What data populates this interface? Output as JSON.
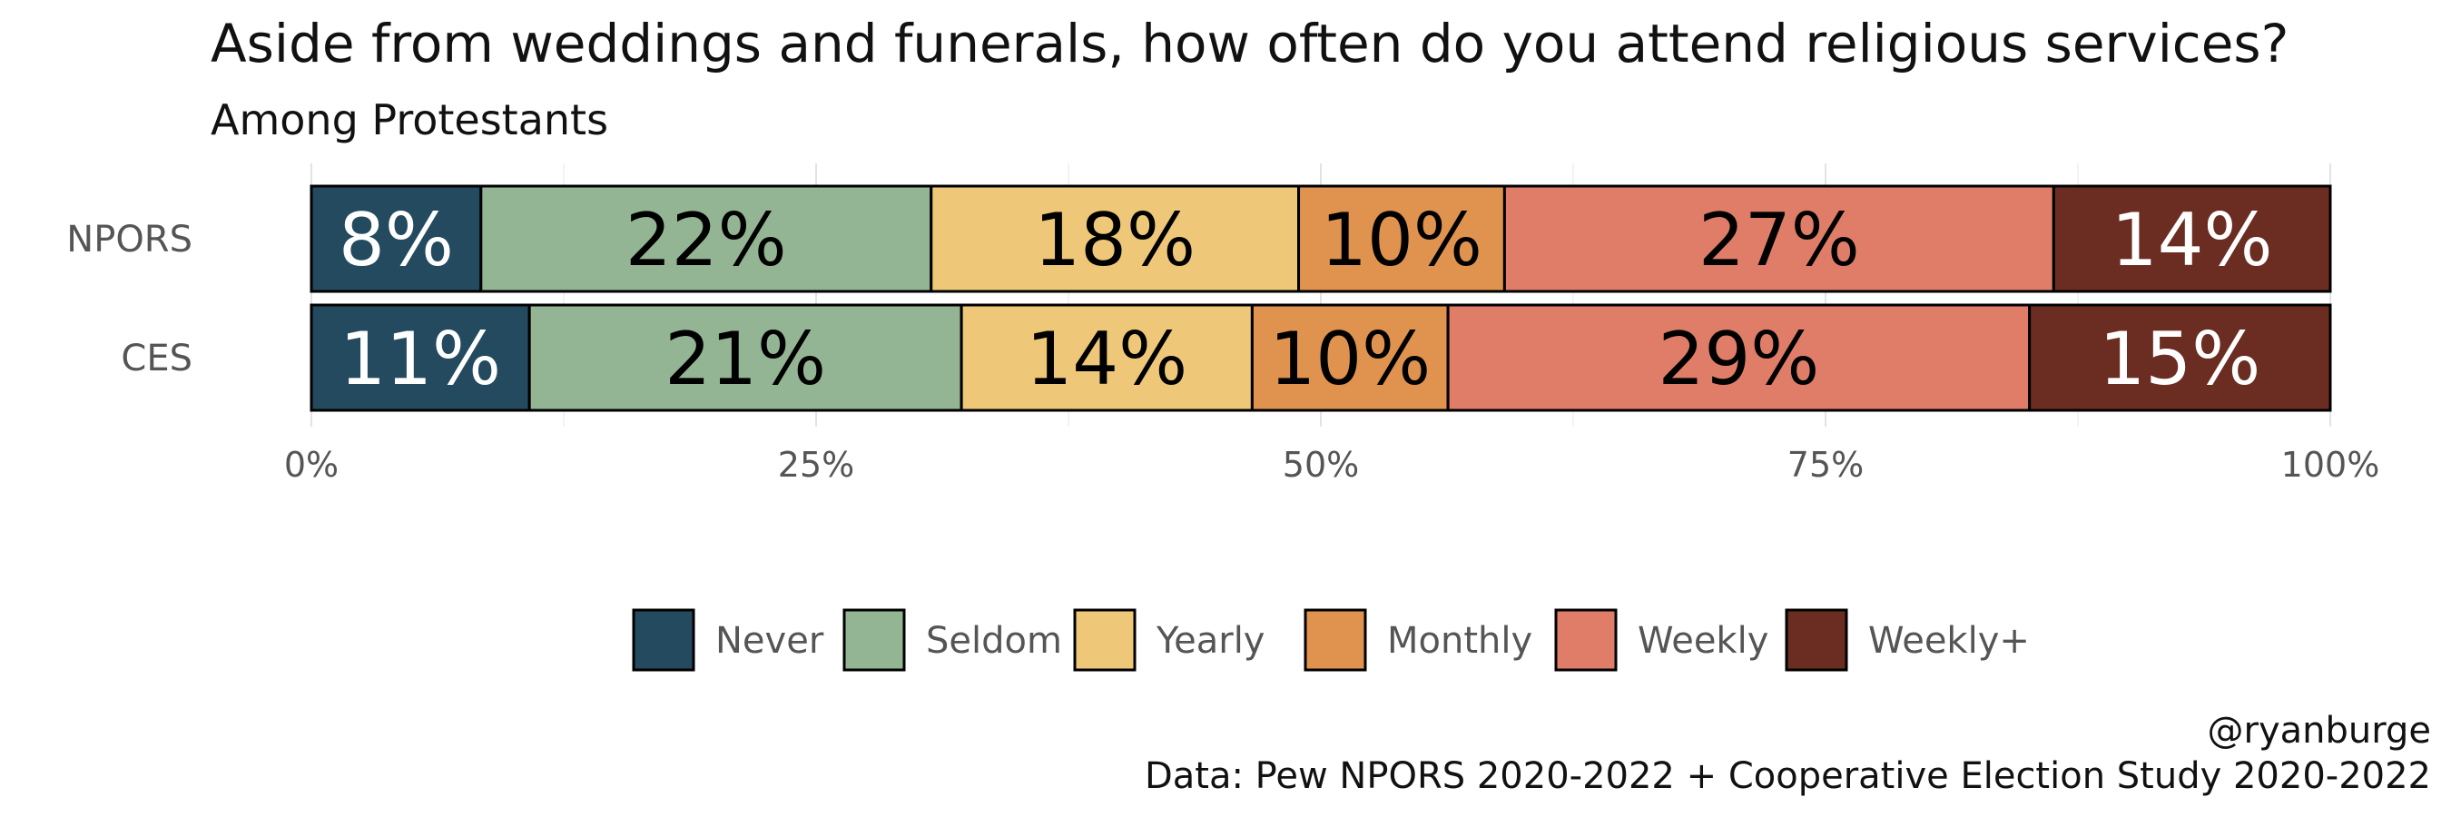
{
  "chart_data": {
    "type": "bar",
    "orientation": "horizontal",
    "stacked": true,
    "title": "Aside from weddings and funerals, how often do you attend religious services?",
    "subtitle": "Among Protestants",
    "categories": [
      "NPORS",
      "CES"
    ],
    "series": [
      {
        "name": "Never",
        "color": "#234a5e",
        "label_color": "#ffffff",
        "values": [
          8.4,
          10.8
        ],
        "labels": [
          "8%",
          "11%"
        ]
      },
      {
        "name": "Seldom",
        "color": "#94b593",
        "label_color": "#000000",
        "values": [
          22.3,
          21.4
        ],
        "labels": [
          "22%",
          "21%"
        ]
      },
      {
        "name": "Yearly",
        "color": "#eec878",
        "label_color": "#000000",
        "values": [
          18.2,
          14.4
        ],
        "labels": [
          "18%",
          "14%"
        ]
      },
      {
        "name": "Monthly",
        "color": "#e0924f",
        "label_color": "#000000",
        "values": [
          10.2,
          9.7
        ],
        "labels": [
          "10%",
          "10%"
        ]
      },
      {
        "name": "Weekly",
        "color": "#e07d68",
        "label_color": "#000000",
        "values": [
          27.2,
          28.8
        ],
        "labels": [
          "27%",
          "29%"
        ]
      },
      {
        "name": "Weekly+",
        "color": "#6b2d22",
        "label_color": "#ffffff",
        "values": [
          13.7,
          14.9
        ],
        "labels": [
          "14%",
          "15%"
        ]
      }
    ],
    "xlim": [
      0,
      100
    ],
    "xticks": [
      0,
      25,
      50,
      75,
      100
    ],
    "xtick_labels": [
      "0%",
      "25%",
      "50%",
      "75%",
      "100%"
    ],
    "xlabel": "",
    "ylabel": "",
    "grid": true,
    "legend_position": "bottom"
  },
  "credits": {
    "author": "@ryanburge",
    "source": "Data: Pew NPORS 2020-2022 + Cooperative Election Study 2020-2022"
  }
}
